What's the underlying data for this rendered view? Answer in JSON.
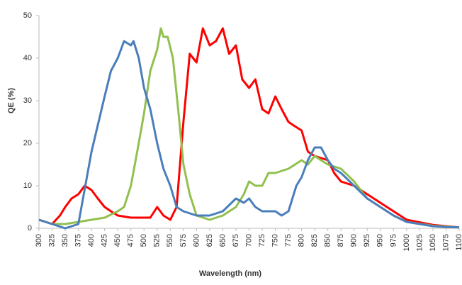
{
  "chart_data": {
    "type": "line",
    "x_label": "Wavelength (nm)",
    "y_label": "QE (%)",
    "xlim": [
      300,
      1100
    ],
    "ylim": [
      0,
      50
    ],
    "xticks": [
      300,
      325,
      350,
      375,
      400,
      425,
      450,
      475,
      500,
      525,
      550,
      575,
      600,
      625,
      650,
      675,
      700,
      725,
      750,
      775,
      800,
      825,
      850,
      875,
      900,
      925,
      950,
      975,
      1000,
      1025,
      1050,
      1075,
      1100
    ],
    "yticks": [
      0,
      10,
      20,
      30,
      40,
      50
    ],
    "grid": false,
    "series": [
      {
        "color": "#ff0000",
        "x": [
          300,
          325,
          340,
          350,
          362,
          375,
          387,
          400,
          412,
          425,
          437,
          450,
          475,
          500,
          512,
          525,
          537,
          550,
          562,
          575,
          587,
          600,
          612,
          625,
          637,
          650,
          662,
          675,
          687,
          700,
          712,
          725,
          737,
          750,
          762,
          775,
          787,
          800,
          812,
          825,
          850,
          862,
          875,
          900,
          925,
          950,
          975,
          1000,
          1050,
          1100
        ],
        "values": [
          2,
          1,
          3,
          5,
          7,
          8,
          10,
          9,
          7,
          5,
          4,
          3,
          2.5,
          2.5,
          2.5,
          5,
          3,
          2,
          5,
          25,
          41,
          39,
          47,
          43,
          44,
          47,
          41,
          43,
          35,
          33,
          35,
          28,
          27,
          31,
          28,
          25,
          24,
          23,
          18,
          17,
          16,
          13,
          11,
          10,
          8,
          6,
          4,
          2,
          0.8,
          0.2
        ]
      },
      {
        "color": "#92c050",
        "x": [
          300,
          325,
          350,
          375,
          400,
          425,
          450,
          462,
          475,
          487,
          500,
          512,
          525,
          532,
          537,
          545,
          555,
          565,
          575,
          587,
          600,
          625,
          650,
          675,
          690,
          700,
          712,
          725,
          737,
          750,
          775,
          800,
          812,
          825,
          837,
          850,
          875,
          900,
          925,
          950,
          975,
          1000,
          1050,
          1100
        ],
        "values": [
          2,
          1,
          1,
          1.5,
          2,
          2.5,
          4,
          5,
          10,
          18,
          27,
          37,
          42,
          47,
          45,
          45,
          40,
          28,
          15,
          8,
          3,
          2,
          3,
          5,
          8,
          11,
          10,
          10,
          13,
          13,
          14,
          16,
          15,
          17,
          16,
          15,
          14,
          11,
          7,
          5,
          3,
          1.5,
          0.6,
          0.2
        ]
      },
      {
        "color": "#4a7ebb",
        "x": [
          300,
          325,
          350,
          375,
          400,
          425,
          437,
          450,
          462,
          475,
          480,
          490,
          500,
          512,
          525,
          537,
          550,
          562,
          575,
          600,
          625,
          650,
          675,
          690,
          700,
          712,
          725,
          750,
          762,
          775,
          790,
          800,
          812,
          825,
          837,
          850,
          862,
          875,
          900,
          925,
          950,
          975,
          1000,
          1025,
          1050,
          1075,
          1100
        ],
        "values": [
          2,
          1,
          0,
          1,
          18,
          31,
          37,
          40,
          44,
          43,
          44,
          40,
          33,
          28,
          20,
          14,
          10,
          5,
          4,
          3,
          3,
          4,
          7,
          6,
          7,
          5,
          4,
          4,
          3,
          4,
          10,
          12,
          16,
          19,
          19,
          16,
          14,
          13,
          10,
          7,
          5,
          3,
          1.5,
          1,
          0.5,
          0.3,
          0.2
        ]
      }
    ]
  }
}
